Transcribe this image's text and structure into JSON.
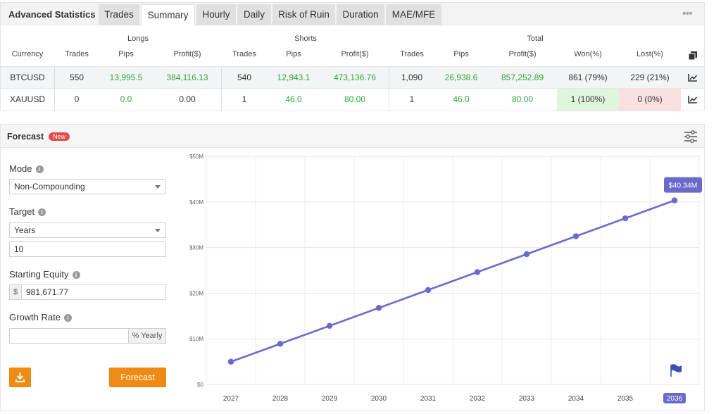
{
  "stats": {
    "title": "Advanced Statistics",
    "tabs": [
      {
        "label": "Trades"
      },
      {
        "label": "Summary"
      },
      {
        "label": "Hourly"
      },
      {
        "label": "Daily"
      },
      {
        "label": "Risk of Ruin"
      },
      {
        "label": "Duration"
      },
      {
        "label": "MAE/MFE"
      }
    ],
    "active_tab": "Summary",
    "groups": {
      "longs": "Longs",
      "shorts": "Shorts",
      "total": "Total"
    },
    "headers": {
      "currency": "Currency",
      "longs_trades": "Trades",
      "longs_pips": "Pips",
      "longs_profit": "Profit($)",
      "shorts_trades": "Trades",
      "shorts_pips": "Pips",
      "shorts_profit": "Profit($)",
      "total_trades": "Trades",
      "total_pips": "Pips",
      "total_profit": "Profit($)",
      "won": "Won(%)",
      "lost": "Lost(%)"
    },
    "rows": [
      {
        "currency": "BTCUSD",
        "longs_trades": "550",
        "longs_pips": "13,995.5",
        "longs_profit": "384,116.13",
        "shorts_trades": "540",
        "shorts_pips": "12,943.1",
        "shorts_profit": "473,136.76",
        "total_trades": "1,090",
        "total_pips": "26,938.6",
        "total_profit": "857,252.89",
        "won": "861 (79%)",
        "lost": "229 (21%)"
      },
      {
        "currency": "XAUUSD",
        "longs_trades": "0",
        "longs_pips": "0.0",
        "longs_profit": "0.00",
        "shorts_trades": "1",
        "shorts_pips": "46.0",
        "shorts_profit": "80.00",
        "total_trades": "1",
        "total_pips": "46.0",
        "total_profit": "80.00",
        "won": "1 (100%)",
        "lost": "0 (0%)"
      }
    ],
    "colors": {
      "positive": "#2ea83c",
      "won_bg": "#dff5dc",
      "lost_bg": "#fbe0e0"
    }
  },
  "forecast": {
    "title": "Forecast",
    "badge": "New",
    "mode_label": "Mode",
    "mode_value": "Non-Compounding",
    "target_label": "Target",
    "target_value": "Years",
    "target_years": "10",
    "equity_label": "Starting Equity",
    "currency_symbol": "$",
    "equity_value": "981,671.77",
    "growth_label": "Growth Rate",
    "growth_value": "",
    "growth_unit": "% Yearly",
    "forecast_button": "Forecast",
    "accent_color": "#ef8a12"
  },
  "chart_data": {
    "type": "line",
    "x": [
      "2027",
      "2028",
      "2029",
      "2030",
      "2031",
      "2032",
      "2033",
      "2034",
      "2035",
      "2036"
    ],
    "series": [
      {
        "values": [
          4.98,
          8.91,
          12.84,
          16.77,
          20.7,
          24.62,
          28.55,
          32.48,
          36.41,
          40.34
        ]
      }
    ],
    "y_unit": "M",
    "ylim": [
      0,
      50
    ],
    "yticks": [
      "$0",
      "$10M",
      "$20M",
      "$30M",
      "$40M",
      "$50M"
    ],
    "highlight": {
      "x": "2036",
      "label": "$40.34M"
    },
    "line_color": "#6a6acc",
    "grid": true
  }
}
